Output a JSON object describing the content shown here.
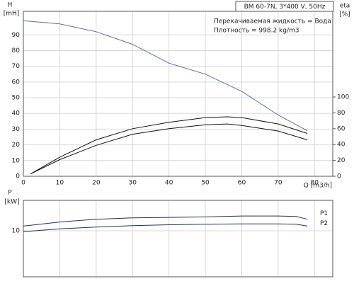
{
  "chart_data": [
    {
      "type": "line",
      "title": "BM 60-7N, 3*400 V, 50Hz",
      "y_label": "H",
      "y_unit": "[mH]",
      "y2_label": "eta",
      "y2_unit": "[%]",
      "x_label": "Q [m3/h]",
      "annotations": [
        "Перекачиваемая жидкость = Вода",
        "Плотность = 998.2 kg/m3"
      ],
      "xlim": [
        0,
        85
      ],
      "xticks": [
        0,
        10,
        20,
        30,
        40,
        50,
        60,
        70,
        80
      ],
      "ylim": [
        0,
        105
      ],
      "yticks": [
        0,
        10,
        20,
        30,
        40,
        50,
        60,
        70,
        80,
        90
      ],
      "y2lim": [
        0,
        208
      ],
      "y2ticks": [
        0,
        20,
        40,
        60,
        80,
        100
      ],
      "grid": true,
      "series": [
        {
          "color": "#5a6ea8",
          "x": [
            0,
            10,
            20,
            30,
            40,
            50,
            60,
            70,
            78
          ],
          "values": [
            99,
            97,
            92,
            84,
            72,
            65,
            54,
            39,
            29
          ]
        },
        {
          "color": "#111111",
          "axis": "y2",
          "x": [
            2,
            10,
            20,
            30,
            40,
            50,
            56,
            60,
            70,
            78
          ],
          "values": [
            3,
            24,
            46,
            60,
            68,
            74,
            75,
            74,
            66,
            54
          ]
        },
        {
          "color": "#111111",
          "axis": "y2",
          "x": [
            2,
            10,
            20,
            30,
            40,
            50,
            56,
            60,
            70,
            78
          ],
          "values": [
            3,
            21,
            39,
            53,
            60,
            65,
            66,
            64,
            57,
            46
          ]
        }
      ]
    },
    {
      "type": "line",
      "y_label": "P",
      "y_unit": "[kW]",
      "ylim": [
        0,
        16.6
      ],
      "yticks": [
        10
      ],
      "grid": true,
      "series": [
        {
          "name": "P1",
          "color": "#1f2f6b",
          "x": [
            0,
            10,
            20,
            30,
            40,
            50,
            60,
            70,
            75,
            78
          ],
          "values": [
            11.0,
            11.9,
            12.5,
            12.8,
            12.9,
            13.0,
            13.2,
            13.2,
            13.1,
            12.5
          ]
        },
        {
          "name": "P2",
          "color": "#1f2f6b",
          "x": [
            0,
            10,
            20,
            30,
            40,
            50,
            60,
            70,
            75,
            78
          ],
          "values": [
            9.8,
            10.4,
            10.8,
            11.1,
            11.3,
            11.4,
            11.5,
            11.5,
            11.4,
            11.0
          ]
        }
      ]
    }
  ]
}
